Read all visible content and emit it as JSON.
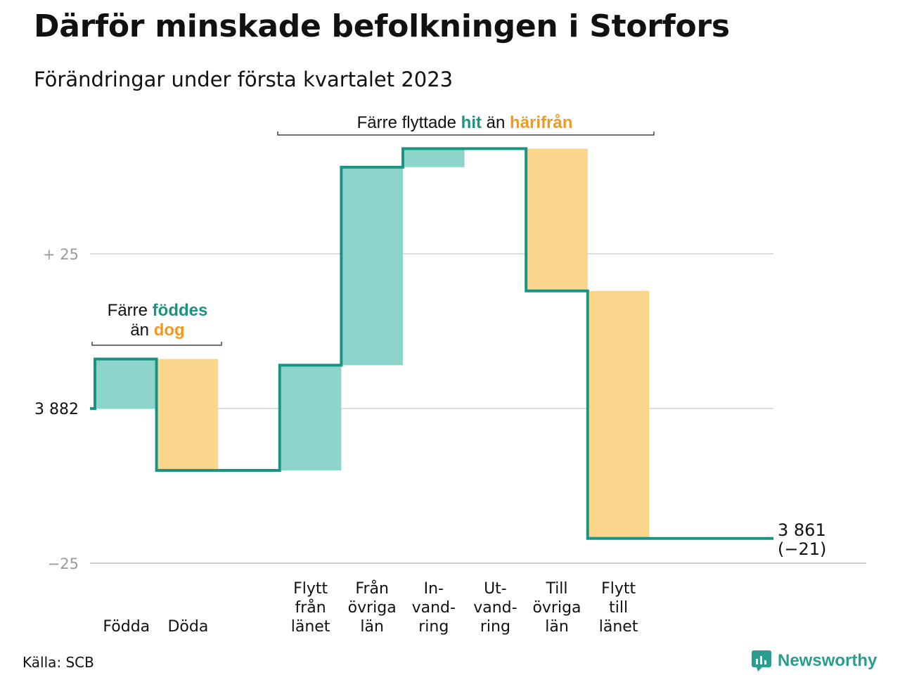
{
  "title": "Därför minskade befolkningen i Storfors",
  "subtitle": "Förändringar under första kvartalet 2023",
  "source": "Källa: SCB",
  "brand": "Newsworthy",
  "colors": {
    "increase": "#8dd4cb",
    "decrease": "#fad58c",
    "line": "#1a9382",
    "accent_teal": "#1a9382",
    "accent_orange": "#f29a1d",
    "grid": "#dddddd",
    "axis_text": "#9a9a9a"
  },
  "annotations": {
    "births": {
      "line1_pre": "Färre ",
      "line1_hl": "föddes",
      "line2_pre": "än ",
      "line2_hl": "dog"
    },
    "moves": {
      "pre": "Färre flyttade ",
      "hl1": "hit",
      "mid": " än ",
      "hl2": "härifrån"
    }
  },
  "chart_data": {
    "type": "waterfall",
    "start_value": 3882,
    "end_value": 3861,
    "end_change": "(−21)",
    "y_ticks": [
      {
        "value": 25,
        "label": "+ 25"
      },
      {
        "value": 0,
        "label": "3 882"
      },
      {
        "value": -25,
        "label": "−25"
      }
    ],
    "ylim": [
      -25,
      43
    ],
    "end_label": "3 861",
    "steps": [
      {
        "name": "births",
        "label": [
          "Födda"
        ],
        "value": 8,
        "color": "increase"
      },
      {
        "name": "deaths",
        "label": [
          "Döda"
        ],
        "value": -18,
        "color": "decrease"
      },
      {
        "name": "gap",
        "label": [],
        "value": 0,
        "gap": true
      },
      {
        "name": "moved-from-county",
        "label": [
          "Flytt",
          "från",
          "länet"
        ],
        "value": 17,
        "color": "increase"
      },
      {
        "name": "from-other-counties",
        "label": [
          "Från",
          "övriga",
          "län"
        ],
        "value": 32,
        "color": "increase"
      },
      {
        "name": "immigration",
        "label": [
          "In-",
          "vand-",
          "ring"
        ],
        "value": 3,
        "color": "increase"
      },
      {
        "name": "emigration",
        "label": [
          "Ut-",
          "vand-",
          "ring"
        ],
        "value": 0,
        "color": "decrease"
      },
      {
        "name": "to-other-counties",
        "label": [
          "Till",
          "övriga",
          "län"
        ],
        "value": -23,
        "color": "decrease"
      },
      {
        "name": "moved-to-county",
        "label": [
          "Flytt",
          "till",
          "länet"
        ],
        "value": -40,
        "color": "decrease"
      }
    ]
  }
}
